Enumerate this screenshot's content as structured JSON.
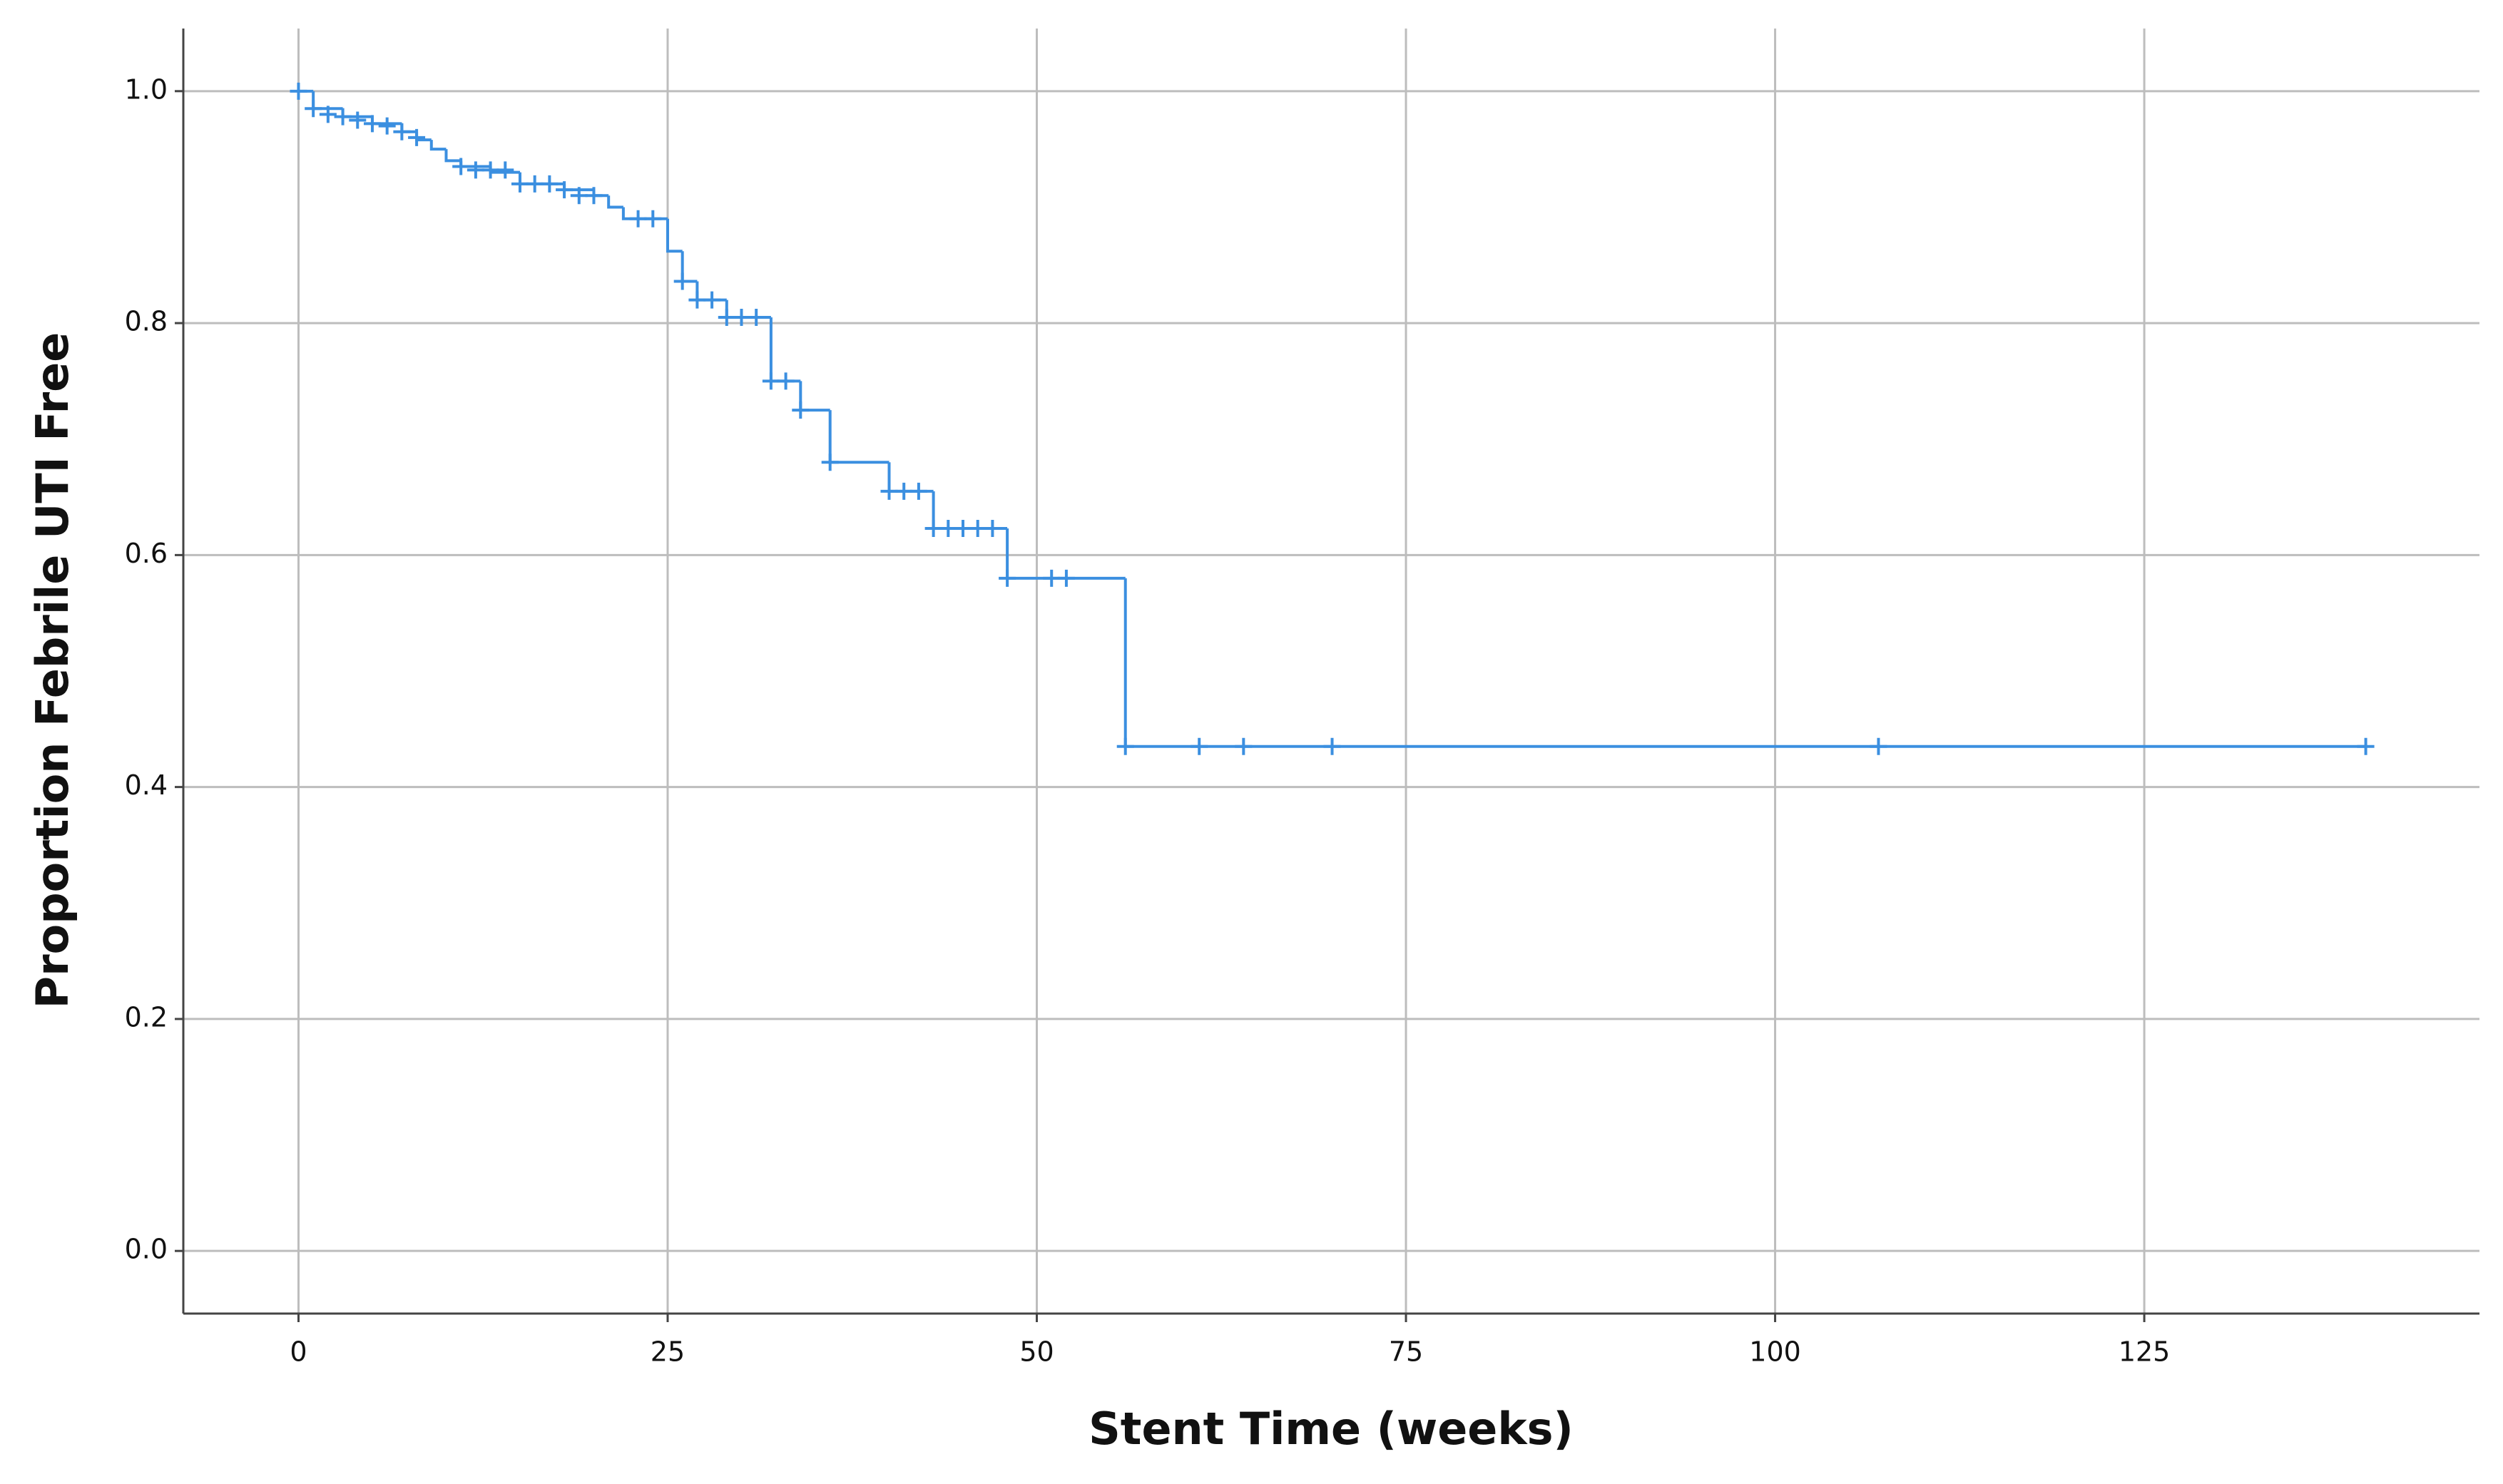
{
  "chart_data": {
    "type": "step",
    "xlabel": "Stent Time (weeks)",
    "ylabel": "Proportion Febrile UTI Free",
    "xlim": [
      -7.8,
      147.7
    ],
    "ylim": [
      -0.054,
      1.054
    ],
    "xticks": [
      0,
      25,
      50,
      75,
      100,
      125
    ],
    "yticks": [
      {
        "value": 0,
        "label": "0.0"
      },
      {
        "value": 0.2,
        "label": "0.2"
      },
      {
        "value": 0.4,
        "label": "0.4"
      },
      {
        "value": 0.6,
        "label": "0.6"
      },
      {
        "value": 0.8,
        "label": "0.8"
      },
      {
        "value": 1,
        "label": "1.0"
      }
    ],
    "grid": true,
    "color": "#3b8fe0",
    "curve": {
      "x": [
        0,
        1,
        3,
        5,
        7,
        8,
        9,
        10,
        11,
        13,
        15,
        18,
        20,
        21,
        22,
        25,
        26,
        27,
        29,
        32,
        34,
        36,
        40,
        43,
        48,
        56,
        140
      ],
      "y": [
        1.0,
        0.985,
        0.978,
        0.972,
        0.965,
        0.958,
        0.95,
        0.94,
        0.935,
        0.93,
        0.92,
        0.915,
        0.91,
        0.9,
        0.89,
        0.862,
        0.836,
        0.82,
        0.805,
        0.75,
        0.725,
        0.68,
        0.655,
        0.623,
        0.58,
        0.435,
        0.435
      ]
    },
    "censored": {
      "x": [
        0,
        1,
        2,
        3,
        4,
        5,
        6,
        7,
        8,
        11,
        12,
        13,
        14,
        15,
        16,
        17,
        18,
        19,
        20,
        23,
        24,
        26,
        27,
        28,
        29,
        30,
        31,
        32,
        33,
        34,
        36,
        40,
        41,
        42,
        43,
        44,
        45,
        46,
        47,
        48,
        51,
        52,
        56,
        61,
        64,
        70,
        107,
        140
      ],
      "y": [
        1.0,
        0.985,
        0.98,
        0.978,
        0.975,
        0.972,
        0.97,
        0.965,
        0.96,
        0.935,
        0.932,
        0.932,
        0.932,
        0.92,
        0.92,
        0.92,
        0.915,
        0.91,
        0.91,
        0.89,
        0.89,
        0.836,
        0.82,
        0.82,
        0.805,
        0.805,
        0.805,
        0.75,
        0.75,
        0.725,
        0.68,
        0.655,
        0.655,
        0.655,
        0.623,
        0.623,
        0.623,
        0.623,
        0.623,
        0.58,
        0.58,
        0.58,
        0.435,
        0.435,
        0.435,
        0.435,
        0.435,
        0.435
      ]
    }
  }
}
